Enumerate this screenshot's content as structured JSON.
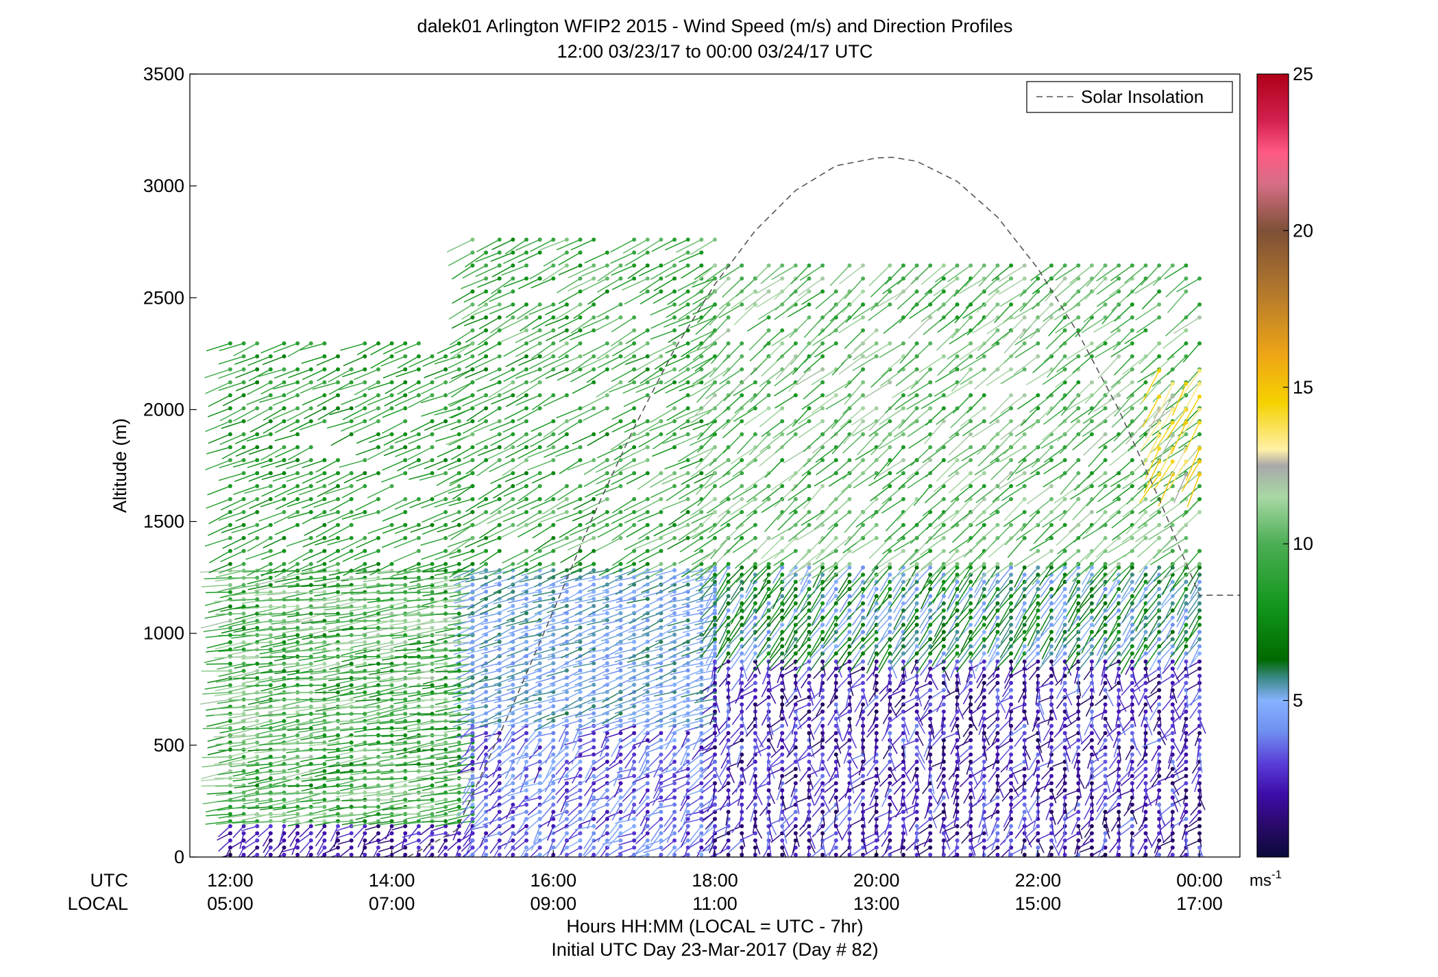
{
  "chart_data": {
    "type": "scatter",
    "title": "dalek01 Arlington WFIP2 2015 - Wind Speed (m/s) and Direction Profiles",
    "subtitle": "12:00 03/23/17 to 00:00 03/24/17  UTC",
    "ylabel": "Altitude (m)",
    "xlabel": "Hours HH:MM  (LOCAL = UTC - 7hr)",
    "xlabel2": "Initial UTC Day 23-Mar-2017 (Day # 82)",
    "ylim": [
      0,
      3500
    ],
    "xlim_hours_utc": [
      11.5,
      24.5
    ],
    "y_ticks": [
      0,
      500,
      1000,
      1500,
      2000,
      2500,
      3000,
      3500
    ],
    "x_row_labels": {
      "utc": "UTC",
      "local": "LOCAL"
    },
    "x_ticks": [
      {
        "hour": 12,
        "utc": "12:00",
        "local": "05:00"
      },
      {
        "hour": 14,
        "utc": "14:00",
        "local": "07:00"
      },
      {
        "hour": 16,
        "utc": "16:00",
        "local": "09:00"
      },
      {
        "hour": 18,
        "utc": "18:00",
        "local": "11:00"
      },
      {
        "hour": 20,
        "utc": "20:00",
        "local": "13:00"
      },
      {
        "hour": 22,
        "utc": "22:00",
        "local": "15:00"
      },
      {
        "hour": 24,
        "utc": "00:00",
        "local": "17:00"
      }
    ],
    "legend": {
      "label": "Solar Insolation",
      "placement": "top-right",
      "style": "dashed",
      "color": "#555555"
    },
    "solar_insolation_curve": {
      "hours_utc": [
        14.2,
        14.8,
        15.5,
        16.0,
        16.5,
        17.0,
        17.5,
        18.0,
        18.5,
        19.0,
        19.5,
        20.0,
        20.2,
        20.5,
        21.0,
        21.5,
        22.0,
        22.5,
        23.0,
        23.5,
        24.0,
        24.5
      ],
      "altitude_m": [
        0,
        120,
        680,
        1100,
        1530,
        1920,
        2270,
        2560,
        2800,
        2980,
        3090,
        3125,
        3128,
        3110,
        3020,
        2860,
        2630,
        2340,
        2000,
        1600,
        1170,
        1170
      ]
    },
    "colorbar": {
      "unit": "ms",
      "unit_exponent": "-1",
      "ticks": [
        5,
        10,
        15,
        20,
        25
      ],
      "range": [
        0,
        25
      ],
      "stops": [
        {
          "v": 0,
          "c": "#0a0a3a"
        },
        {
          "v": 1,
          "c": "#2a0a6a"
        },
        {
          "v": 2,
          "c": "#3d0ca8"
        },
        {
          "v": 3,
          "c": "#5a3ed8"
        },
        {
          "v": 4,
          "c": "#6f8ff0"
        },
        {
          "v": 5,
          "c": "#86b2ff"
        },
        {
          "v": 5.7,
          "c": "#3d8a8a"
        },
        {
          "v": 6.3,
          "c": "#006a00"
        },
        {
          "v": 8,
          "c": "#12961b"
        },
        {
          "v": 10,
          "c": "#4cae54"
        },
        {
          "v": 11.5,
          "c": "#a8d8a5"
        },
        {
          "v": 12.5,
          "c": "#a8a8a8"
        },
        {
          "v": 13,
          "c": "#fff0a8"
        },
        {
          "v": 14.5,
          "c": "#f5d200"
        },
        {
          "v": 16,
          "c": "#efa615"
        },
        {
          "v": 18,
          "c": "#b47a2c"
        },
        {
          "v": 20,
          "c": "#7e5036"
        },
        {
          "v": 21.5,
          "c": "#d66e86"
        },
        {
          "v": 22.5,
          "c": "#ff5a84"
        },
        {
          "v": 23.5,
          "c": "#d42050"
        },
        {
          "v": 25,
          "c": "#b00018"
        }
      ]
    },
    "wind_profile_regimes": [
      {
        "hours_utc": [
          12.0,
          15.0
        ],
        "altitude_m": [
          0,
          150
        ],
        "speed_ms": [
          1,
          3
        ],
        "direction_deg": [
          190,
          260
        ]
      },
      {
        "hours_utc": [
          12.0,
          15.0
        ],
        "altitude_m": [
          150,
          1300
        ],
        "speed_ms": [
          7,
          12
        ],
        "direction_deg": [
          255,
          270
        ]
      },
      {
        "hours_utc": [
          12.0,
          15.0
        ],
        "altitude_m": [
          1300,
          2300
        ],
        "speed_ms": [
          7,
          10
        ],
        "direction_deg": [
          240,
          255
        ]
      },
      {
        "hours_utc": [
          15.0,
          18.0
        ],
        "altitude_m": [
          0,
          600
        ],
        "speed_ms": [
          2,
          5
        ],
        "direction_deg": [
          200,
          260
        ]
      },
      {
        "hours_utc": [
          15.0,
          18.0
        ],
        "altitude_m": [
          600,
          1300
        ],
        "speed_ms": [
          4,
          6
        ],
        "direction_deg": [
          240,
          260
        ]
      },
      {
        "hours_utc": [
          15.0,
          18.0
        ],
        "altitude_m": [
          1300,
          2800
        ],
        "speed_ms": [
          7,
          11
        ],
        "direction_deg": [
          235,
          250
        ]
      },
      {
        "hours_utc": [
          18.0,
          24.1
        ],
        "altitude_m": [
          0,
          900
        ],
        "speed_ms": [
          0.5,
          4
        ],
        "direction_deg": [
          150,
          250
        ]
      },
      {
        "hours_utc": [
          18.0,
          24.1
        ],
        "altitude_m": [
          900,
          1300
        ],
        "speed_ms": [
          4,
          8
        ],
        "direction_deg": [
          205,
          225
        ]
      },
      {
        "hours_utc": [
          18.0,
          24.1
        ],
        "altitude_m": [
          1300,
          2700
        ],
        "speed_ms": [
          8,
          12
        ],
        "direction_deg": [
          220,
          240
        ]
      },
      {
        "hours_utc": [
          23.5,
          24.1
        ],
        "altitude_m": [
          1700,
          2200
        ],
        "speed_ms": [
          12,
          15
        ],
        "direction_deg": [
          200,
          215
        ]
      }
    ]
  }
}
